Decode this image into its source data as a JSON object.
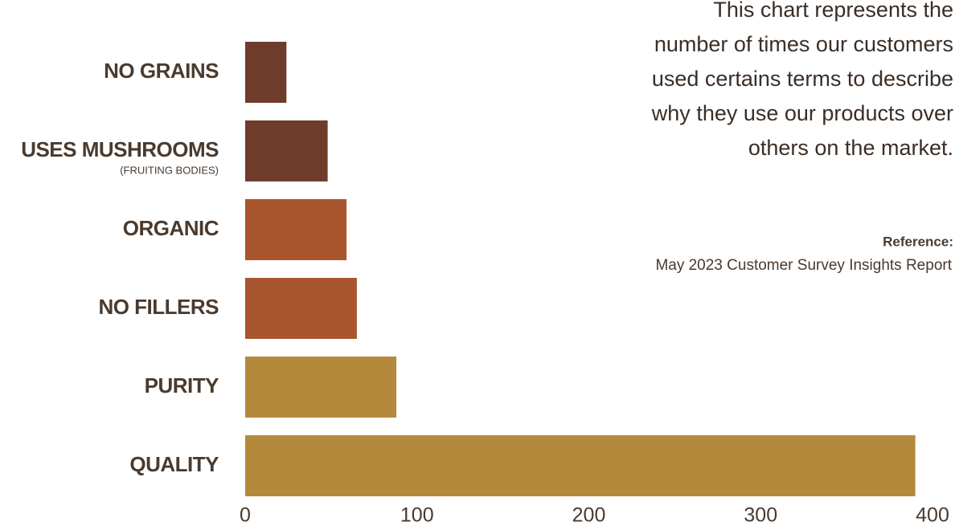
{
  "chart_data": {
    "type": "bar",
    "orientation": "horizontal",
    "categories": [
      "NO GRAINS",
      "USES MUSHROOMS",
      "ORGANIC",
      "NO FILLERS",
      "PURITY",
      "QUALITY"
    ],
    "sublabels": [
      null,
      "(FRUITING BODIES)",
      null,
      null,
      null,
      null
    ],
    "values": [
      24,
      48,
      59,
      65,
      88,
      390
    ],
    "colors": [
      "#6f3c2b",
      "#6f3c2b",
      "#a9552e",
      "#a9552e",
      "#b5893c",
      "#b5893c"
    ],
    "xlim": [
      0,
      400
    ],
    "xticks": [
      0,
      100,
      200,
      300,
      400
    ],
    "grid": false,
    "description": [
      "This chart represents the",
      "number of times our customers",
      "used certains terms to describe",
      "why they use our products over",
      "others on the market."
    ],
    "reference_label": "Reference:",
    "reference": "May 2023 Customer Survey Insights Report"
  }
}
